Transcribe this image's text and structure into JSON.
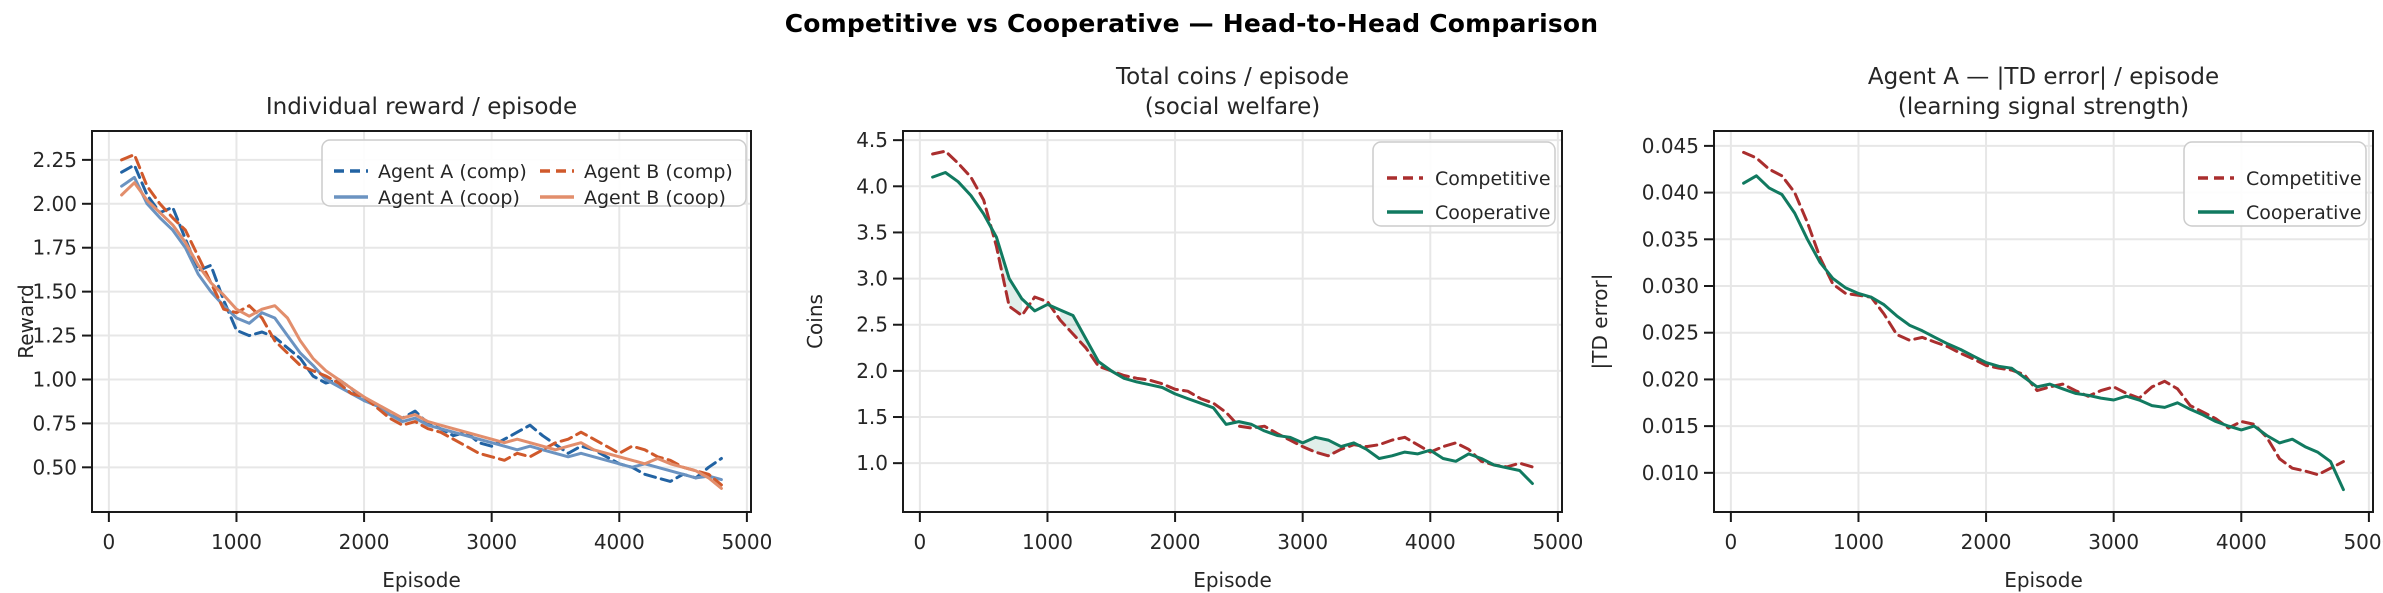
{
  "figure": {
    "suptitle": "Competitive vs Cooperative — Head-to-Head Comparison",
    "background": "#ffffff",
    "text_color": "#262626",
    "spine_color": "#1a1a1a",
    "grid_color": "#e7e7e7"
  },
  "chart_data": [
    {
      "type": "line",
      "title_lines": [
        "Individual reward / episode"
      ],
      "xlabel": "Episode",
      "ylabel": "Reward",
      "xlim": [
        -140,
        5040
      ],
      "ylim": [
        0.24,
        2.42
      ],
      "grid": true,
      "legend_position": "upper right",
      "legend_columns": 2,
      "xticks": {
        "values": [
          0,
          1000,
          2000,
          3000,
          4000,
          5000
        ],
        "labels": [
          "0",
          "1000",
          "2000",
          "3000",
          "4000",
          "5000"
        ]
      },
      "yticks": {
        "values": [
          0.5,
          0.75,
          1.0,
          1.25,
          1.5,
          1.75,
          2.0,
          2.25
        ],
        "labels": [
          "0.50",
          "0.75",
          "1.00",
          "1.25",
          "1.50",
          "1.75",
          "2.00",
          "2.25"
        ]
      },
      "x": [
        100,
        200,
        300,
        400,
        500,
        600,
        700,
        800,
        900,
        1000,
        1100,
        1200,
        1300,
        1400,
        1500,
        1600,
        1700,
        1800,
        1900,
        2000,
        2100,
        2200,
        2300,
        2400,
        2500,
        2600,
        2700,
        2800,
        2900,
        3000,
        3100,
        3200,
        3300,
        3400,
        3500,
        3600,
        3700,
        3800,
        3900,
        4000,
        4100,
        4200,
        4300,
        4400,
        4500,
        4600,
        4700,
        4800
      ],
      "series": [
        {
          "name": "Agent A (comp)",
          "color": "#2263a3",
          "dash": true,
          "values": [
            2.18,
            2.22,
            2.05,
            1.95,
            1.98,
            1.8,
            1.62,
            1.65,
            1.45,
            1.28,
            1.25,
            1.27,
            1.24,
            1.18,
            1.12,
            1.02,
            0.98,
            1.0,
            0.95,
            0.88,
            0.86,
            0.8,
            0.78,
            0.82,
            0.75,
            0.72,
            0.68,
            0.7,
            0.64,
            0.62,
            0.66,
            0.7,
            0.74,
            0.68,
            0.63,
            0.58,
            0.62,
            0.6,
            0.56,
            0.52,
            0.5,
            0.46,
            0.44,
            0.42,
            0.46,
            0.44,
            0.5,
            0.55
          ]
        },
        {
          "name": "Agent A (coop)",
          "color": "#6b93c1",
          "dash": false,
          "values": [
            2.1,
            2.15,
            2.0,
            1.92,
            1.85,
            1.75,
            1.6,
            1.5,
            1.42,
            1.35,
            1.32,
            1.38,
            1.35,
            1.25,
            1.15,
            1.08,
            1.0,
            0.96,
            0.92,
            0.88,
            0.85,
            0.8,
            0.76,
            0.78,
            0.74,
            0.72,
            0.7,
            0.68,
            0.66,
            0.64,
            0.62,
            0.6,
            0.62,
            0.6,
            0.58,
            0.56,
            0.58,
            0.56,
            0.54,
            0.52,
            0.5,
            0.52,
            0.5,
            0.48,
            0.46,
            0.44,
            0.45,
            0.43
          ]
        },
        {
          "name": "Agent B (comp)",
          "color": "#d0592b",
          "dash": true,
          "values": [
            2.25,
            2.28,
            2.1,
            2.0,
            1.92,
            1.85,
            1.7,
            1.55,
            1.4,
            1.38,
            1.42,
            1.35,
            1.22,
            1.15,
            1.08,
            1.05,
            1.02,
            0.98,
            0.92,
            0.9,
            0.84,
            0.78,
            0.74,
            0.76,
            0.72,
            0.7,
            0.66,
            0.62,
            0.58,
            0.56,
            0.54,
            0.58,
            0.56,
            0.6,
            0.64,
            0.66,
            0.7,
            0.66,
            0.62,
            0.58,
            0.62,
            0.6,
            0.56,
            0.54,
            0.5,
            0.48,
            0.46,
            0.4
          ]
        },
        {
          "name": "Agent B (coop)",
          "color": "#e28e6c",
          "dash": false,
          "values": [
            2.05,
            2.12,
            2.02,
            1.95,
            1.88,
            1.78,
            1.65,
            1.55,
            1.48,
            1.4,
            1.36,
            1.4,
            1.42,
            1.35,
            1.22,
            1.12,
            1.05,
            1.0,
            0.95,
            0.9,
            0.86,
            0.82,
            0.78,
            0.8,
            0.76,
            0.74,
            0.72,
            0.7,
            0.68,
            0.66,
            0.64,
            0.66,
            0.64,
            0.62,
            0.6,
            0.62,
            0.64,
            0.6,
            0.58,
            0.56,
            0.54,
            0.52,
            0.55,
            0.52,
            0.5,
            0.48,
            0.44,
            0.38
          ]
        }
      ]
    },
    {
      "type": "line",
      "title_lines": [
        "Total coins / episode",
        "(social welfare)"
      ],
      "xlabel": "Episode",
      "ylabel": "Coins",
      "xlim": [
        -140,
        5040
      ],
      "ylim": [
        0.46,
        4.61
      ],
      "grid": true,
      "legend_position": "upper right",
      "legend_columns": 1,
      "fill_between": {
        "below_series": 0,
        "above_series": 1,
        "color": "rgba(17,122,96,0.13)"
      },
      "xticks": {
        "values": [
          0,
          1000,
          2000,
          3000,
          4000,
          5000
        ],
        "labels": [
          "0",
          "1000",
          "2000",
          "3000",
          "4000",
          "5000"
        ]
      },
      "yticks": {
        "values": [
          1.0,
          1.5,
          2.0,
          2.5,
          3.0,
          3.5,
          4.0,
          4.5
        ],
        "labels": [
          "1.0",
          "1.5",
          "2.0",
          "2.5",
          "3.0",
          "3.5",
          "4.0",
          "4.5"
        ]
      },
      "x": [
        100,
        200,
        300,
        400,
        500,
        600,
        700,
        800,
        900,
        1000,
        1100,
        1200,
        1300,
        1400,
        1500,
        1600,
        1700,
        1800,
        1900,
        2000,
        2100,
        2200,
        2300,
        2400,
        2500,
        2600,
        2700,
        2800,
        2900,
        3000,
        3100,
        3200,
        3300,
        3400,
        3500,
        3600,
        3700,
        3800,
        3900,
        4000,
        4100,
        4200,
        4300,
        4400,
        4500,
        4600,
        4700,
        4800
      ],
      "series": [
        {
          "name": "Competitive",
          "color": "#aa2e2e",
          "dash": true,
          "values": [
            4.35,
            4.38,
            4.25,
            4.1,
            3.85,
            3.35,
            2.7,
            2.6,
            2.8,
            2.75,
            2.55,
            2.4,
            2.25,
            2.05,
            2.0,
            1.95,
            1.92,
            1.9,
            1.86,
            1.8,
            1.78,
            1.7,
            1.65,
            1.55,
            1.4,
            1.38,
            1.4,
            1.32,
            1.25,
            1.18,
            1.12,
            1.08,
            1.15,
            1.2,
            1.18,
            1.2,
            1.25,
            1.28,
            1.2,
            1.12,
            1.18,
            1.22,
            1.15,
            1.02,
            0.98,
            0.96,
            1.0,
            0.96
          ]
        },
        {
          "name": "Cooperative",
          "color": "#117a60",
          "dash": false,
          "values": [
            4.1,
            4.15,
            4.05,
            3.9,
            3.7,
            3.45,
            3.0,
            2.78,
            2.65,
            2.72,
            2.66,
            2.6,
            2.35,
            2.1,
            2.0,
            1.92,
            1.88,
            1.85,
            1.82,
            1.75,
            1.7,
            1.65,
            1.6,
            1.42,
            1.45,
            1.42,
            1.35,
            1.3,
            1.28,
            1.22,
            1.28,
            1.25,
            1.18,
            1.22,
            1.15,
            1.05,
            1.08,
            1.12,
            1.1,
            1.14,
            1.05,
            1.02,
            1.1,
            1.05,
            0.98,
            0.95,
            0.92,
            0.78
          ]
        }
      ]
    },
    {
      "type": "line",
      "title_lines": [
        "Agent A — |TD error| / episode",
        "(learning signal strength)"
      ],
      "xlabel": "Episode",
      "ylabel": "|TD error|",
      "xlim": [
        -140,
        5040
      ],
      "ylim": [
        0.0057,
        0.0467
      ],
      "grid": true,
      "legend_position": "upper right",
      "legend_columns": 1,
      "xticks": {
        "values": [
          0,
          1000,
          2000,
          3000,
          4000,
          5000
        ],
        "labels": [
          "0",
          "1000",
          "2000",
          "3000",
          "4000",
          "5000"
        ]
      },
      "yticks": {
        "values": [
          0.01,
          0.015,
          0.02,
          0.025,
          0.03,
          0.035,
          0.04,
          0.045
        ],
        "labels": [
          "0.010",
          "0.015",
          "0.020",
          "0.025",
          "0.030",
          "0.035",
          "0.040",
          "0.045"
        ]
      },
      "x": [
        100,
        200,
        300,
        400,
        500,
        600,
        700,
        800,
        900,
        1000,
        1100,
        1200,
        1300,
        1400,
        1500,
        1600,
        1700,
        1800,
        1900,
        2000,
        2100,
        2200,
        2300,
        2400,
        2500,
        2600,
        2700,
        2800,
        2900,
        3000,
        3100,
        3200,
        3300,
        3400,
        3500,
        3600,
        3700,
        3800,
        3900,
        4000,
        4100,
        4200,
        4300,
        4400,
        4500,
        4600,
        4700,
        4800
      ],
      "series": [
        {
          "name": "Competitive",
          "color": "#aa2e2e",
          "dash": true,
          "values": [
            0.0443,
            0.0437,
            0.0425,
            0.0418,
            0.04,
            0.0368,
            0.033,
            0.0302,
            0.0292,
            0.029,
            0.0288,
            0.027,
            0.0248,
            0.0242,
            0.0245,
            0.024,
            0.0235,
            0.0228,
            0.0222,
            0.0215,
            0.0212,
            0.021,
            0.0205,
            0.0188,
            0.0192,
            0.0195,
            0.0188,
            0.0182,
            0.0188,
            0.0192,
            0.0185,
            0.018,
            0.0192,
            0.0198,
            0.019,
            0.0172,
            0.0165,
            0.0158,
            0.0148,
            0.0155,
            0.0152,
            0.0138,
            0.0115,
            0.0105,
            0.0102,
            0.0098,
            0.0105,
            0.0112
          ]
        },
        {
          "name": "Cooperative",
          "color": "#117a60",
          "dash": false,
          "values": [
            0.041,
            0.0418,
            0.0405,
            0.0398,
            0.0378,
            0.035,
            0.0325,
            0.0308,
            0.0298,
            0.0292,
            0.0288,
            0.028,
            0.0268,
            0.0258,
            0.0252,
            0.0245,
            0.0238,
            0.0232,
            0.0225,
            0.0218,
            0.0214,
            0.0212,
            0.0202,
            0.0192,
            0.0195,
            0.019,
            0.0185,
            0.0183,
            0.018,
            0.0178,
            0.0182,
            0.0178,
            0.0172,
            0.017,
            0.0175,
            0.0168,
            0.0162,
            0.0155,
            0.015,
            0.0146,
            0.015,
            0.014,
            0.0132,
            0.0136,
            0.0128,
            0.0122,
            0.0112,
            0.0082
          ]
        }
      ]
    }
  ]
}
